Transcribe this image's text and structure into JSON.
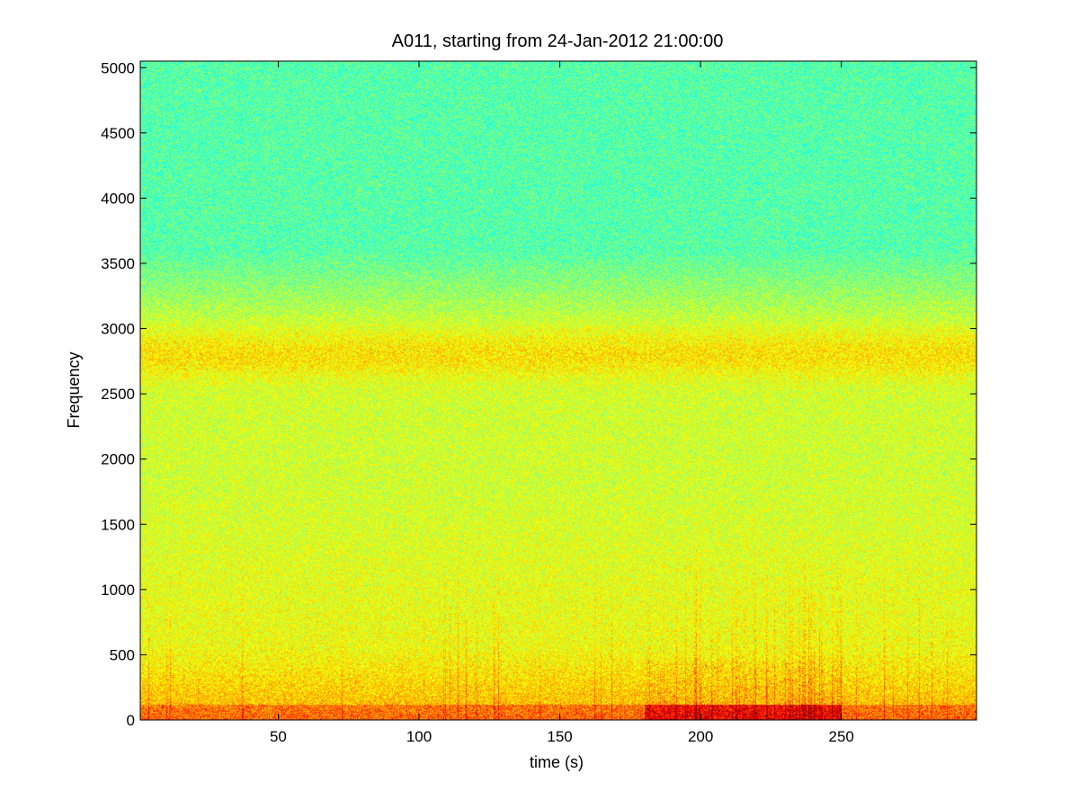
{
  "chart_data": {
    "type": "heatmap",
    "title": "A011, starting from 24-Jan-2012 21:00:00",
    "xlabel": "time (s)",
    "ylabel": "Frequency",
    "xlim": [
      1,
      298
    ],
    "ylim": [
      0,
      5050
    ],
    "xticks": [
      50,
      100,
      150,
      200,
      250
    ],
    "yticks": [
      0,
      500,
      1000,
      1500,
      2000,
      2500,
      3000,
      3500,
      4000,
      4500,
      5000
    ],
    "grid": false,
    "colormap": "jet",
    "colors": {
      "high": "#d40000",
      "mid_high": "#f5f500",
      "mid": "#aaff40",
      "low": "#35f8c0",
      "background": "#ffffff",
      "axes": "#000000"
    },
    "features": {
      "low_frequency_band_top": 550,
      "secondary_band_center": 2800,
      "secondary_band_range": [
        2600,
        3000
      ],
      "transition_to_cyan_frequency": 3600,
      "dense_activity_time_range": [
        180,
        250
      ]
    }
  }
}
